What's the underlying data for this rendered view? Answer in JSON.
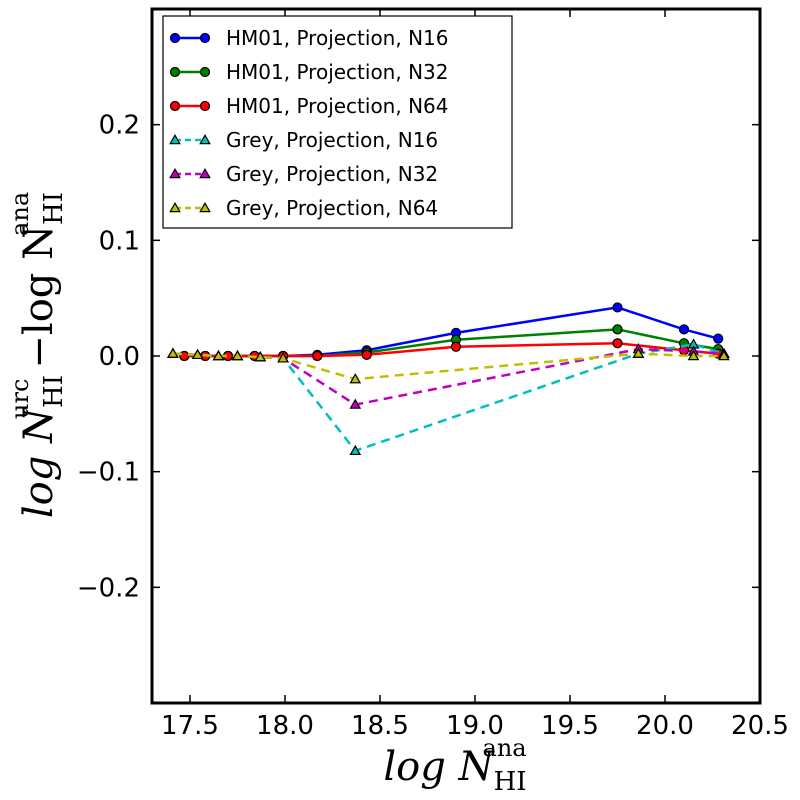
{
  "chart_data": {
    "type": "line",
    "title": "",
    "xlabel": {
      "main": "log N",
      "sub": "HI",
      "sup": "ana"
    },
    "ylabel": {
      "main1": "log N",
      "sub1": "HI",
      "sup1": "urc",
      "op": "−log N",
      "sub2": "HI",
      "sup2": "ana"
    },
    "xlim": [
      17.3,
      20.5
    ],
    "ylim": [
      -0.3,
      0.3
    ],
    "xticks": [
      17.5,
      18.0,
      18.5,
      19.0,
      19.5,
      20.0,
      20.5
    ],
    "xtick_labels": [
      "17.5",
      "18.0",
      "18.5",
      "19.0",
      "19.5",
      "20.0",
      "20.5"
    ],
    "yticks": [
      -0.2,
      -0.1,
      0.0,
      0.1,
      0.2
    ],
    "ytick_labels": [
      "−0.2",
      "−0.1",
      "0.0",
      "0.1",
      "0.2"
    ],
    "legend_position": "top-left",
    "series": [
      {
        "name": "HM01, Projection, N16",
        "color": "#0000ff",
        "dash": "solid",
        "marker": "circle",
        "x": [
          17.47,
          17.58,
          17.7,
          17.84,
          17.99,
          18.17,
          18.43,
          18.9,
          19.75,
          20.1,
          20.28
        ],
        "y": [
          0.0,
          0.0,
          0.0,
          0.0,
          0.0,
          0.001,
          0.005,
          0.02,
          0.042,
          0.023,
          0.015
        ]
      },
      {
        "name": "HM01, Projection, N32",
        "color": "#008000",
        "dash": "solid",
        "marker": "circle",
        "x": [
          17.47,
          17.58,
          17.7,
          17.84,
          17.99,
          18.17,
          18.43,
          18.9,
          19.75,
          20.1,
          20.28
        ],
        "y": [
          0.0,
          0.0,
          0.0,
          0.0,
          0.0,
          0.0,
          0.003,
          0.014,
          0.023,
          0.011,
          0.006
        ]
      },
      {
        "name": "HM01, Projection, N64",
        "color": "#ff0000",
        "dash": "solid",
        "marker": "circle",
        "x": [
          17.47,
          17.58,
          17.7,
          17.84,
          17.99,
          18.17,
          18.43,
          18.9,
          19.75,
          20.1,
          20.28
        ],
        "y": [
          0.0,
          0.0,
          0.0,
          0.0,
          0.0,
          0.0,
          0.001,
          0.008,
          0.011,
          0.005,
          0.002
        ]
      },
      {
        "name": "Grey, Projection, N16",
        "color": "#00bfbf",
        "dash": "dashed",
        "marker": "triangle",
        "x": [
          17.41,
          17.54,
          17.65,
          17.75,
          17.87,
          17.99,
          18.37,
          19.86,
          20.15,
          20.31
        ],
        "y": [
          0.002,
          0.001,
          0.0,
          0.0,
          -0.001,
          -0.002,
          -0.082,
          0.002,
          0.01,
          0.002
        ]
      },
      {
        "name": "Grey, Projection, N32",
        "color": "#bf00bf",
        "dash": "dashed",
        "marker": "triangle",
        "x": [
          17.41,
          17.54,
          17.65,
          17.75,
          17.87,
          17.99,
          18.37,
          19.86,
          20.15,
          20.31
        ],
        "y": [
          0.002,
          0.001,
          0.0,
          0.0,
          -0.001,
          -0.002,
          -0.042,
          0.006,
          0.004,
          0.002
        ]
      },
      {
        "name": "Grey, Projection, N64",
        "color": "#bfbf00",
        "dash": "dashed",
        "marker": "triangle",
        "x": [
          17.41,
          17.54,
          17.65,
          17.75,
          17.87,
          17.99,
          18.37,
          19.86,
          20.15,
          20.31
        ],
        "y": [
          0.002,
          0.001,
          0.0,
          0.0,
          -0.001,
          -0.002,
          -0.02,
          0.002,
          0.0,
          0.0
        ]
      }
    ]
  }
}
